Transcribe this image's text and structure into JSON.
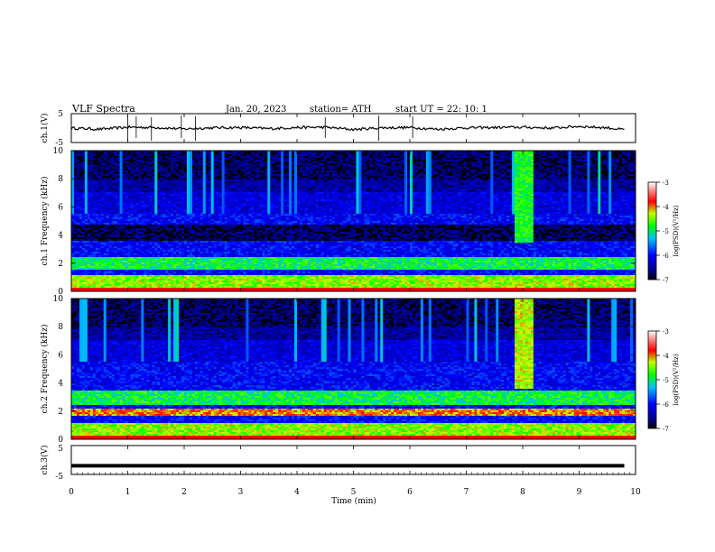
{
  "header": {
    "title": "VLF  Spectra",
    "date": "Jan.  20,  2023",
    "station": "station= ATH",
    "start": "start  UT  =    22:  10:  1"
  },
  "chart_data": [
    {
      "type": "line",
      "panel": "ch1-waveform",
      "ylabel": "ch.1(V)",
      "ylim": [
        -5,
        5
      ],
      "yticks": [
        "5",
        "-5"
      ],
      "xlim": [
        0,
        10
      ],
      "x": [
        0,
        0.5,
        1,
        1.5,
        2,
        2.5,
        3,
        3.5,
        4,
        4.5,
        5,
        5.5,
        6,
        6.5,
        7,
        7.5,
        8,
        8.5,
        9,
        9.5,
        9.8
      ],
      "y": [
        0,
        -0.4,
        0.3,
        0.2,
        -0.3,
        0.1,
        0.2,
        -0.2,
        0.2,
        0.3,
        -0.5,
        0.1,
        0.2,
        -0.4,
        0.1,
        0.2,
        0.3,
        0.0,
        0.6,
        0.1,
        -0.6
      ]
    },
    {
      "type": "heatmap",
      "panel": "ch1-spectrogram",
      "ylabel": "ch.1  Frequency (kHz)",
      "ylim": [
        0,
        10
      ],
      "yticks": [
        "0",
        "2",
        "4",
        "6",
        "8",
        "10"
      ],
      "xlim": [
        0,
        10
      ],
      "colorbar": {
        "label": "log(PSD)(V²/Hz)",
        "range": [
          -7,
          -3
        ],
        "ticks": [
          "-3",
          "-4",
          "-5",
          "-6",
          "-7"
        ]
      },
      "features": [
        {
          "kind": "band",
          "f_min": 3.6,
          "f_max": 4.7,
          "level": -7
        },
        {
          "kind": "band",
          "f_min": 1.6,
          "f_max": 2.4,
          "level": -5
        },
        {
          "kind": "band",
          "f_min": 0.3,
          "f_max": 1.2,
          "level": -4.5
        },
        {
          "kind": "burst",
          "t_min": 7.85,
          "t_max": 8.2,
          "f_min": 3.4,
          "f_max": 10,
          "level": -5
        }
      ]
    },
    {
      "type": "heatmap",
      "panel": "ch2-spectrogram",
      "ylabel": "ch.2  Frequency (kHz)",
      "ylim": [
        0,
        10
      ],
      "yticks": [
        "0",
        "2",
        "4",
        "6",
        "8",
        "10"
      ],
      "xlim": [
        0,
        10
      ],
      "colorbar": {
        "label": "log(PSD)(V²/Hz)",
        "range": [
          -7,
          -3
        ],
        "ticks": [
          "-3",
          "-4",
          "-5",
          "-6",
          "-7"
        ]
      },
      "features": [
        {
          "kind": "band",
          "f_min": 2.5,
          "f_max": 3.5,
          "level": -5
        },
        {
          "kind": "band",
          "f_min": 1.7,
          "f_max": 2.2,
          "level": -4
        },
        {
          "kind": "band",
          "f_min": 0.3,
          "f_max": 1.2,
          "level": -4.5
        },
        {
          "kind": "burst",
          "t_min": 7.85,
          "t_max": 8.2,
          "f_min": 3.6,
          "f_max": 10,
          "level": -4.5
        }
      ]
    },
    {
      "type": "line",
      "panel": "ch3-waveform",
      "ylabel": "ch.3(V)",
      "ylim": [
        -5,
        5
      ],
      "yticks": [
        "5",
        "-5"
      ],
      "xlim": [
        0,
        10
      ],
      "x": [
        0,
        9.8
      ],
      "y": [
        -2,
        -2
      ]
    }
  ],
  "xaxis": {
    "label": "Time  (min)",
    "ticks": [
      "0",
      "1",
      "2",
      "3",
      "4",
      "5",
      "6",
      "7",
      "8",
      "9",
      "10"
    ]
  }
}
